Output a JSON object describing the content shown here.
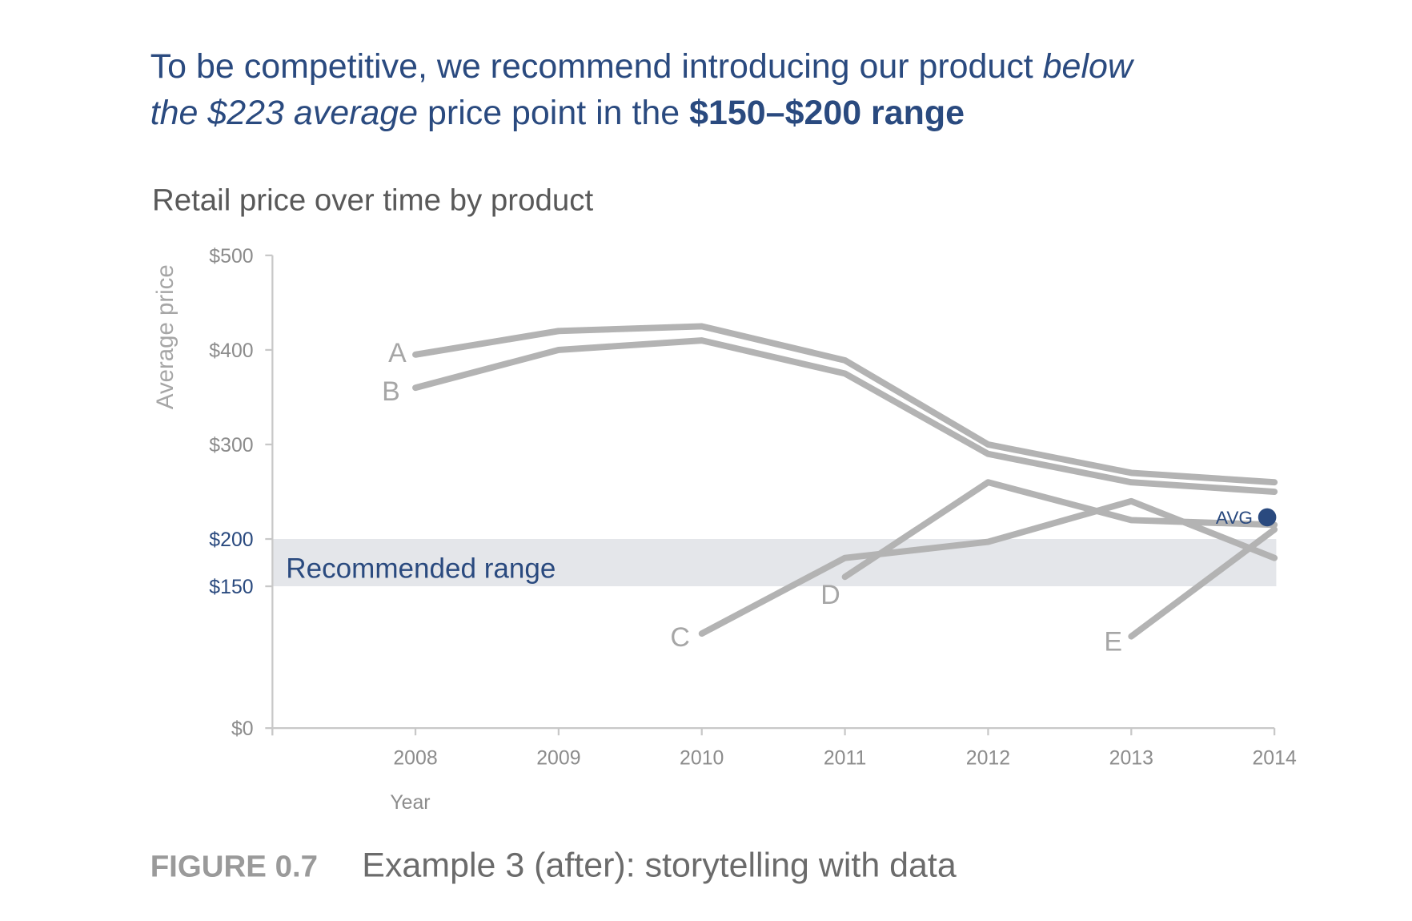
{
  "headline": {
    "part1": "To be competitive, we recommend introducing our product ",
    "part1_italic": "below",
    "part2_italic": "the $223 average",
    "part2": " price point in the ",
    "part2_bold": "$150–$200 range"
  },
  "caption": {
    "figure": "FIGURE 0.7",
    "text": "Example 3 (after): storytelling with data"
  },
  "colors": {
    "accent": "#2a4a7f",
    "line": "#b3b3b3",
    "band": "#e4e6ea",
    "axis": "#c8c8c8"
  },
  "chart_data": {
    "type": "line",
    "title": "Retail price over time by product",
    "xlabel": "Year",
    "ylabel": "Average price",
    "x": [
      2008,
      2009,
      2010,
      2011,
      2012,
      2013,
      2014
    ],
    "xlim": [
      2007,
      2014
    ],
    "ylim": [
      0,
      500
    ],
    "yticks": [
      {
        "value": 0,
        "label": "$0"
      },
      {
        "value": 150,
        "label": "$150",
        "highlight": true
      },
      {
        "value": 200,
        "label": "$200",
        "highlight": true
      },
      {
        "value": 300,
        "label": "$300"
      },
      {
        "value": 400,
        "label": "$400"
      },
      {
        "value": 500,
        "label": "$500"
      }
    ],
    "series": [
      {
        "name": "A",
        "values": [
          395,
          420,
          425,
          389,
          300,
          270,
          260
        ]
      },
      {
        "name": "B",
        "values": [
          360,
          400,
          410,
          375,
          290,
          260,
          250
        ]
      },
      {
        "name": "C",
        "values": [
          null,
          null,
          100,
          180,
          197,
          240,
          180
        ]
      },
      {
        "name": "D",
        "values": [
          null,
          null,
          null,
          160,
          260,
          220,
          215
        ]
      },
      {
        "name": "E",
        "values": [
          null,
          null,
          null,
          null,
          null,
          97,
          210
        ]
      }
    ],
    "band": {
      "from": 150,
      "to": 200,
      "label": "Recommended range"
    },
    "average": {
      "label": "AVG",
      "value": 223,
      "x": 2014
    },
    "grid": false
  }
}
